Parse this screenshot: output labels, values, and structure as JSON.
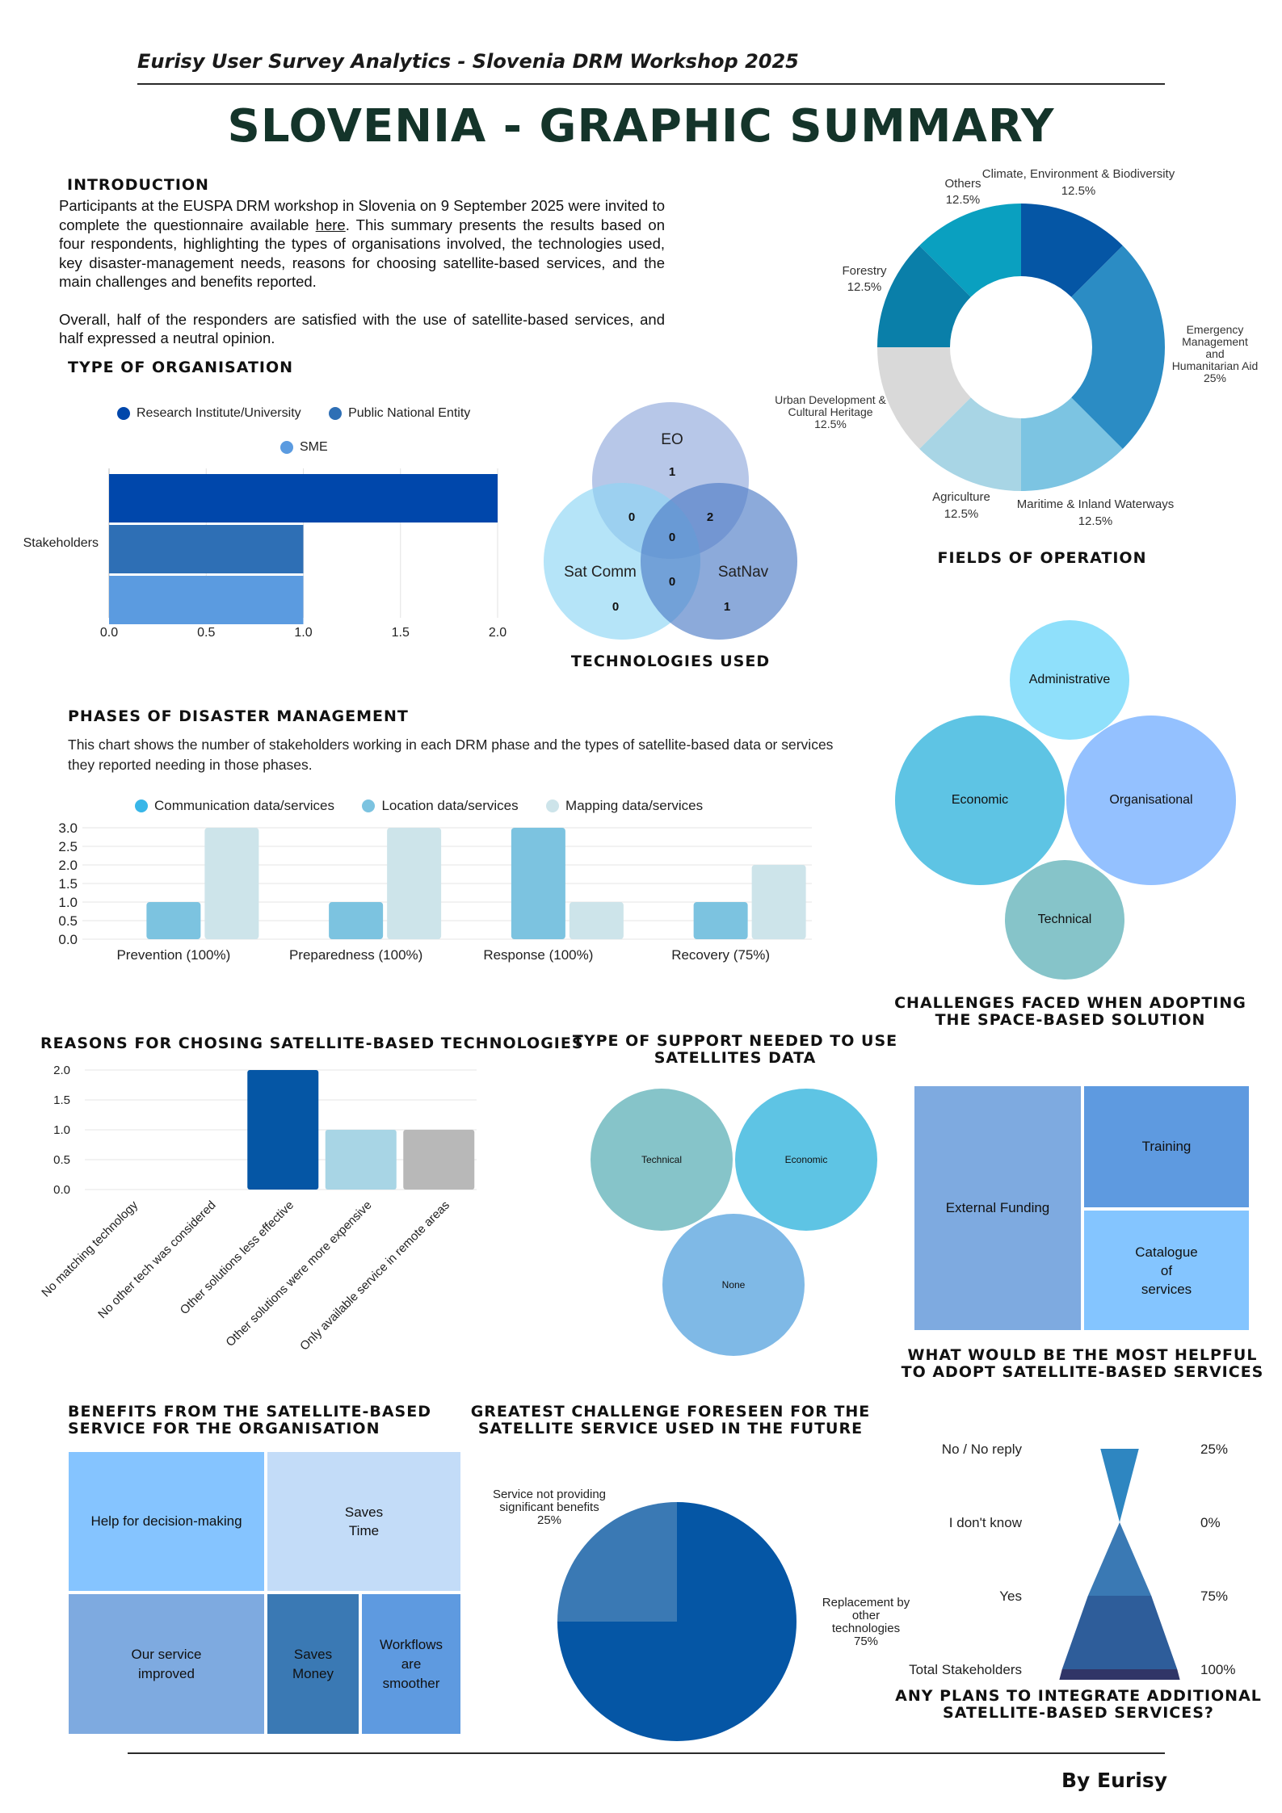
{
  "header": {
    "subtitle": "Eurisy User Survey Analytics - Slovenia DRM Workshop 2025",
    "title": "SLOVENIA - GRAPHIC SUMMARY",
    "footer": "By Eurisy"
  },
  "intro": {
    "heading": "INTRODUCTION",
    "p1_before": "Participants at the EUSPA DRM workshop in Slovenia on 9 September 2025 were invited to complete the questionnaire available ",
    "p1_link": "here",
    "p1_after": ". This summary presents the results based on four respondents, highlighting the types of organisations involved, the technologies used, key disaster-management needs, reasons for choosing satellite-based services, and the main challenges and benefits reported.",
    "p2": "Overall, half of the responders are satisfied with the use of satellite-based services, and half expressed a neutral opinion."
  },
  "org": {
    "heading": "TYPE OF ORGANISATION",
    "colors": {
      "research": "#0047ab",
      "public": "#2e6fb5",
      "sme": "#5b9be0"
    },
    "legend": [
      "Research Institute/University",
      "Public National Entity",
      "SME"
    ]
  },
  "tech": {
    "heading": "TECHNOLOGIES USED",
    "sets": {
      "eo": "EO",
      "satcomm": "Sat Comm",
      "satnav": "SatNav"
    },
    "counts": {
      "eo_only": "1",
      "satcomm_only": "0",
      "satnav_only": "1",
      "eo_satcomm": "0",
      "eo_satnav": "2",
      "satcomm_satnav": "0",
      "all": "0"
    }
  },
  "fields": {
    "heading": "FIELDS OF OPERATION",
    "labels": {
      "climate": "Climate, Environment & Biodiversity",
      "climate_pct": "12.5%",
      "emergency1": "Emergency",
      "emergency2": "Management",
      "emergency3": "and",
      "emergency4": "Humanitarian Aid",
      "emergency_pct": "25%",
      "maritime": "Maritime & Inland Waterways",
      "maritime_pct": "12.5%",
      "agriculture": "Agriculture",
      "agriculture_pct": "12.5%",
      "urban1": "Urban Development &",
      "urban2": "Cultural Heritage",
      "urban_pct": "12.5%",
      "forestry": "Forestry",
      "forestry_pct": "12.5%",
      "others": "Others",
      "others_pct": "12.5%"
    }
  },
  "phases": {
    "heading": "PHASES OF DISASTER MANAGEMENT",
    "description": "This chart shows the number of stakeholders working in each DRM phase and the types of satellite-based data or services they reported needing in those phases.",
    "legend": [
      "Communication data/services",
      "Location data/services",
      "Mapping data/services"
    ],
    "legend_colors": [
      "#38b6e8",
      "#7cc3e0",
      "#cde4ea"
    ]
  },
  "challenges": {
    "heading1": "CHALLENGES FACED WHEN ADOPTING",
    "heading2": "THE SPACE-BASED SOLUTION",
    "items": {
      "administrative": "Administrative",
      "economic": "Economic",
      "organisational": "Organisational",
      "technical": "Technical"
    }
  },
  "reasons": {
    "heading": "REASONS FOR CHOSING SATELLITE-BASED TECHNOLOGIES"
  },
  "support": {
    "heading1": "TYPE OF SUPPORT NEEDED TO USE",
    "heading2": "SATELLITES DATA",
    "items": {
      "technical": "Technical",
      "economic": "Economic",
      "none": "None"
    }
  },
  "helpful": {
    "heading1": "WHAT WOULD BE THE MOST HELPFUL",
    "heading2": "TO ADOPT SATELLITE-BASED SERVICES",
    "items": {
      "funding": "External Funding",
      "training": "Training",
      "catalogue": "Catalogue\nof\nservices"
    }
  },
  "benefits": {
    "heading1": "BENEFITS FROM THE SATELLITE-BASED",
    "heading2": "SERVICE FOR THE ORGANISATION",
    "items": {
      "decision": "Help for decision-making",
      "time": "Saves\nTime",
      "improved": "Our service\nimproved",
      "money": "Saves\nMoney",
      "workflows": "Workflows\nare\nsmoother"
    }
  },
  "future": {
    "heading1": "GREATEST CHALLENGE FORESEEN FOR THE",
    "heading2": "SATELLITE SERVICE USED IN THE FUTURE",
    "labels": {
      "service1": "Service not providing",
      "service2": "significant benefits",
      "service_pct": "25%",
      "replace1": "Replacement by",
      "replace2": "other",
      "replace3": "technologies",
      "replace_pct": "75%"
    }
  },
  "plans": {
    "heading1": "ANY PLANS TO INTEGRATE ADDITIONAL",
    "heading2": "SATELLITE-BASED SERVICES?",
    "rows": [
      {
        "label": "No / No reply",
        "pct": "25%"
      },
      {
        "label": "I don't know",
        "pct": "0%"
      },
      {
        "label": "Yes",
        "pct": "75%"
      },
      {
        "label": "Total Stakeholders",
        "pct": "100%"
      }
    ]
  },
  "chart_data": [
    {
      "type": "bar",
      "title": "TYPE OF ORGANISATION",
      "orientation": "horizontal",
      "categories": [
        "Stakeholders"
      ],
      "series": [
        {
          "name": "Research Institute/University",
          "values": [
            2
          ]
        },
        {
          "name": "Public National Entity",
          "values": [
            1
          ]
        },
        {
          "name": "SME",
          "values": [
            1
          ]
        }
      ],
      "xlim": [
        0,
        2
      ],
      "xticks": [
        "0.0",
        "0.5",
        "1.0",
        "1.5",
        "2.0"
      ]
    },
    {
      "type": "pie",
      "title": "FIELDS OF OPERATION",
      "labels": [
        "Climate, Environment & Biodiversity",
        "Emergency Management and Humanitarian Aid",
        "Maritime & Inland Waterways",
        "Agriculture",
        "Urban Development & Cultural Heritage",
        "Forestry",
        "Others"
      ],
      "values": [
        12.5,
        25,
        12.5,
        12.5,
        12.5,
        12.5,
        12.5
      ],
      "colors": [
        "#0556a5",
        "#2b8cc4",
        "#7cc4e2",
        "#a8d5e5",
        "#d9d9d9",
        "#0a7fa9",
        "#0aa0c0"
      ],
      "donut": true
    },
    {
      "type": "bar",
      "title": "PHASES OF DISASTER MANAGEMENT",
      "categories": [
        "Prevention (100%)",
        "Preparedness (100%)",
        "Response (100%)",
        "Recovery (75%)"
      ],
      "series": [
        {
          "name": "Communication data/services",
          "values": [
            0,
            0,
            0,
            0
          ]
        },
        {
          "name": "Location data/services",
          "values": [
            1,
            1,
            3,
            1
          ]
        },
        {
          "name": "Mapping data/services",
          "values": [
            3,
            3,
            1,
            2
          ]
        }
      ],
      "ylim": [
        0,
        3
      ],
      "yticks": [
        "0.0",
        "0.5",
        "1.0",
        "1.5",
        "2.0",
        "2.5",
        "3.0"
      ]
    },
    {
      "type": "bar",
      "title": "REASONS FOR CHOSING SATELLITE-BASED TECHNOLOGIES",
      "categories": [
        "No matching technology",
        "No other tech was considered",
        "Other solutions less effective",
        "Other solutions were more expensive",
        "Only available service in remote areas"
      ],
      "values": [
        0,
        0,
        2,
        1,
        1
      ],
      "colors": [
        "#0556a5",
        "#0556a5",
        "#0556a5",
        "#a8d5e5",
        "#b8b8b8"
      ],
      "ylim": [
        0,
        2
      ],
      "yticks": [
        "0.0",
        "0.5",
        "1.0",
        "1.5",
        "2.0"
      ]
    },
    {
      "type": "pie",
      "title": "GREATEST CHALLENGE FORESEEN FOR THE SATELLITE SERVICE USED IN THE FUTURE",
      "labels": [
        "Service not providing significant benefits",
        "Replacement by other technologies"
      ],
      "values": [
        25,
        75
      ],
      "colors": [
        "#3a79b4",
        "#0556a5"
      ]
    },
    {
      "type": "bar",
      "title": "ANY PLANS TO INTEGRATE ADDITIONAL SATELLITE-BASED SERVICES?",
      "categories": [
        "No / No reply",
        "I don't know",
        "Yes",
        "Total Stakeholders"
      ],
      "values": [
        25,
        0,
        75,
        100
      ],
      "unit": "%"
    }
  ]
}
